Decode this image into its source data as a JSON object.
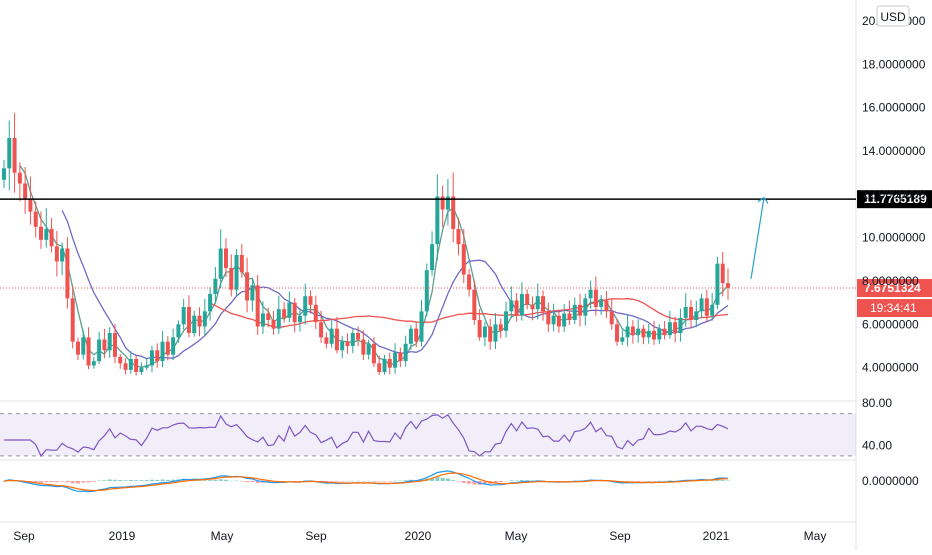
{
  "chart_data": {
    "type": "candlestick",
    "currency_label": "USD",
    "x_ticks": [
      "Sep",
      "2019",
      "May",
      "Sep",
      "2020",
      "May",
      "Sep",
      "2021",
      "May"
    ],
    "price_axis": {
      "ticks": [
        "4.0000000",
        "6.0000000",
        "8.0000000",
        "10.0000000",
        "12.0000000",
        "14.0000000",
        "16.0000000",
        "18.0000000",
        "20.0000000"
      ],
      "ylim": [
        2.6,
        20.6
      ]
    },
    "horizontal_line": {
      "value": 11.7765189,
      "label": "11.7765189"
    },
    "last_price": {
      "value": 7.6751324,
      "label": "7.6751324"
    },
    "countdown": {
      "label": "19:34:41"
    },
    "price_path": [
      13.2,
      14.6,
      13.0,
      12.5,
      11.8,
      11.2,
      10.5,
      9.9,
      10.4,
      9.6,
      8.9,
      9.5,
      7.2,
      5.2,
      4.6,
      5.4,
      4.1,
      4.3,
      5.3,
      4.8,
      5.6,
      4.5,
      4.2,
      3.9,
      4.4,
      3.8,
      4.0,
      4.1,
      4.8,
      4.3,
      5.2,
      4.6,
      5.4,
      6.0,
      6.8,
      5.6,
      6.4,
      5.9,
      6.6,
      7.4,
      8.1,
      9.5,
      8.6,
      7.6,
      9.2,
      8.4,
      7.1,
      7.8,
      5.9,
      6.5,
      6.2,
      5.8,
      6.7,
      6.3,
      7.0,
      6.1,
      6.4,
      7.3,
      6.9,
      6.1,
      5.4,
      5.1,
      5.8,
      4.8,
      5.2,
      5.0,
      5.6,
      5.3,
      4.6,
      5.1,
      4.2,
      3.8,
      4.4,
      4.0,
      4.7,
      4.3,
      5.1,
      5.8,
      5.2,
      6.6,
      8.5,
      9.7,
      11.9,
      11.3,
      11.9,
      10.4,
      9.7,
      8.3,
      7.6,
      6.2,
      5.4,
      5.9,
      5.2,
      6.0,
      5.7,
      6.6,
      7.1,
      6.4,
      7.4,
      6.9,
      6.7,
      7.3,
      6.6,
      6.0,
      6.4,
      5.9,
      6.5,
      6.2,
      6.9,
      6.4,
      7.2,
      7.6,
      6.8,
      7.1,
      6.6,
      6.0,
      5.2,
      5.4,
      5.9,
      5.5,
      5.8,
      5.4,
      5.7,
      5.3,
      5.8,
      5.5,
      6.1,
      5.6,
      6.3,
      6.8,
      6.2,
      6.6,
      7.2,
      6.4,
      6.9,
      8.8,
      7.9,
      7.68
    ],
    "rsi": {
      "ticks": [
        "40.00",
        "80.00"
      ],
      "band": [
        30,
        70
      ],
      "ylim": [
        28,
        80
      ]
    },
    "macd": {
      "ticks": [
        "0.0000000"
      ]
    }
  }
}
